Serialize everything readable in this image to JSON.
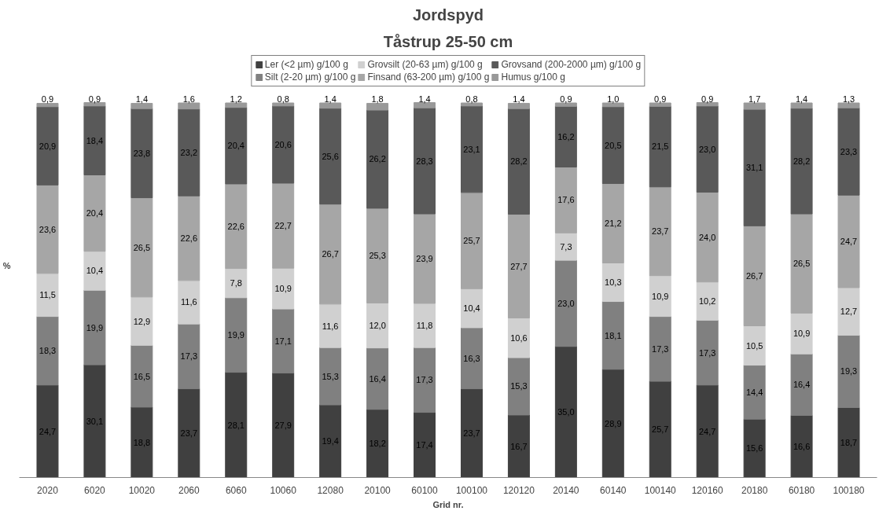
{
  "chart_data": {
    "type": "bar",
    "title": "Jordspyd",
    "subtitle": "Tåstrup 25-50 cm",
    "xlabel": "Grid nr.",
    "ylabel": "%",
    "stacked": true,
    "legend": "top",
    "grid": false,
    "categories": [
      "2020",
      "6020",
      "10020",
      "2060",
      "6060",
      "10060",
      "12080",
      "20100",
      "60100",
      "100100",
      "120120",
      "20140",
      "60140",
      "100140",
      "120160",
      "20180",
      "60180",
      "100180"
    ],
    "series": [
      {
        "name": "Ler (<2 µm) g/100 g",
        "color": "#404040",
        "values": [
          24.7,
          30.1,
          18.8,
          23.7,
          28.1,
          27.9,
          19.4,
          18.2,
          17.4,
          23.7,
          16.7,
          35.0,
          28.9,
          25.7,
          24.7,
          15.6,
          16.6,
          18.7
        ],
        "value_labels": [
          "24,7",
          "30,1",
          "18,8",
          "23,7",
          "28,1",
          "27,9",
          "19,4",
          "18,2",
          "17,4",
          "23,7",
          "16,7",
          "35,0",
          "28,9",
          "25,7",
          "24,7",
          "15,6",
          "16,6",
          "18,7"
        ]
      },
      {
        "name": "Silt (2-20 µm) g/100 g",
        "color": "#808080",
        "values": [
          18.3,
          19.9,
          16.5,
          17.3,
          19.9,
          17.1,
          15.3,
          16.4,
          17.3,
          16.3,
          15.3,
          23.0,
          18.1,
          17.3,
          17.3,
          14.4,
          16.4,
          19.3
        ],
        "value_labels": [
          "18,3",
          "19,9",
          "16,5",
          "17,3",
          "19,9",
          "17,1",
          "15,3",
          "16,4",
          "17,3",
          "16,3",
          "15,3",
          "23,0",
          "18,1",
          "17,3",
          "17,3",
          "14,4",
          "16,4",
          "19,3"
        ]
      },
      {
        "name": "Grovsilt (20-63 µm) g/100 g",
        "color": "#d0d0d0",
        "values": [
          11.5,
          10.4,
          12.9,
          11.6,
          7.8,
          10.9,
          11.6,
          12.0,
          11.8,
          10.4,
          10.6,
          7.3,
          10.3,
          10.9,
          10.2,
          10.5,
          10.9,
          12.7
        ],
        "value_labels": [
          "11,5",
          "10,4",
          "12,9",
          "11,6",
          "7,8",
          "10,9",
          "11,6",
          "12,0",
          "11,8",
          "10,4",
          "10,6",
          "7,3",
          "10,3",
          "10,9",
          "10,2",
          "10,5",
          "10,9",
          "12,7"
        ]
      },
      {
        "name": "Finsand (63-200 µm) g/100 g",
        "color": "#a6a6a6",
        "values": [
          23.6,
          20.4,
          26.5,
          22.6,
          22.6,
          22.7,
          26.7,
          25.3,
          23.9,
          25.7,
          27.7,
          17.6,
          21.2,
          23.7,
          24.0,
          26.7,
          26.5,
          24.7
        ],
        "value_labels": [
          "23,6",
          "20,4",
          "26,5",
          "22,6",
          "22,6",
          "22,7",
          "26,7",
          "25,3",
          "23,9",
          "25,7",
          "27,7",
          "17,6",
          "21,2",
          "23,7",
          "24,0",
          "26,7",
          "26,5",
          "24,7"
        ]
      },
      {
        "name": "Grovsand (200-2000 µm) g/100 g",
        "color": "#595959",
        "values": [
          20.9,
          18.4,
          23.8,
          23.2,
          20.4,
          20.6,
          25.6,
          26.2,
          28.3,
          23.1,
          28.2,
          16.2,
          20.5,
          21.5,
          23.0,
          31.1,
          28.2,
          23.3
        ],
        "value_labels": [
          "20,9",
          "18,4",
          "23,8",
          "23,2",
          "20,4",
          "20,6",
          "25,6",
          "26,2",
          "28,3",
          "23,1",
          "28,2",
          "16,2",
          "20,5",
          "21,5",
          "23,0",
          "31,1",
          "28,2",
          "23,3"
        ]
      },
      {
        "name": "Humus g/100 g",
        "color": "#999999",
        "values": [
          0.9,
          0.9,
          1.4,
          1.6,
          1.2,
          0.8,
          1.4,
          1.8,
          1.4,
          0.8,
          1.4,
          0.9,
          1.0,
          0.9,
          0.9,
          1.7,
          1.4,
          1.3
        ],
        "value_labels": [
          "0,9",
          "0,9",
          "1,4",
          "1,6",
          "1,2",
          "0,8",
          "1,4",
          "1,8",
          "1,4",
          "0,8",
          "1,4",
          "0,9",
          "1,0",
          "0,9",
          "0,9",
          "1,7",
          "1,4",
          "1,3"
        ]
      }
    ]
  }
}
